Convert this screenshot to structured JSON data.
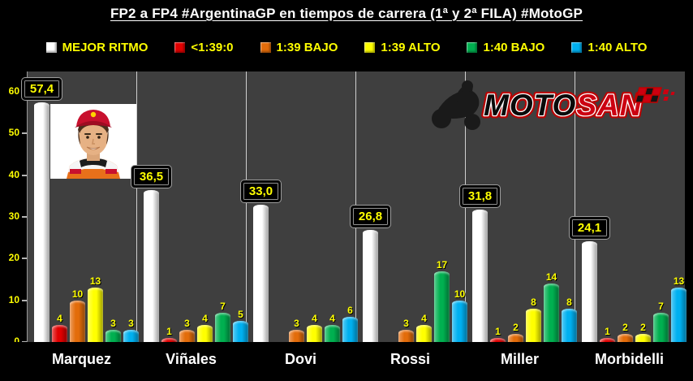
{
  "title": "FP2 a FP4 #ArgentinaGP en tiempos de carrera (1ª y 2ª FILA) #MotoGP",
  "colors": {
    "background": "#000000",
    "plot_background": "#3f3f3f",
    "separator": "#cfcfcf",
    "label_yellow": "#ffff00",
    "title_white": "#ffffff"
  },
  "legend": {
    "items": [
      {
        "label": "MEJOR RITMO",
        "color": "#ffffff"
      },
      {
        "label": "<1:39:0",
        "color": "#e00000"
      },
      {
        "label": "1:39 BAJO",
        "color": "#e36c0a"
      },
      {
        "label": "1:39 ALTO",
        "color": "#ffff00"
      },
      {
        "label": "1:40 BAJO",
        "color": "#00b050"
      },
      {
        "label": "1:40 ALTO",
        "color": "#00b0f0"
      }
    ]
  },
  "watermark": {
    "text": "MOTOSAN",
    "moto": "MOTO",
    "san": "SAN"
  },
  "chart_data": {
    "type": "bar",
    "title": "FP2 a FP4 #ArgentinaGP en tiempos de carrera (1ª y 2ª FILA) #MotoGP",
    "categories": [
      "Marquez",
      "Viñales",
      "Dovi",
      "Rossi",
      "Miller",
      "Morbidelli"
    ],
    "series": [
      {
        "name": "MEJOR RITMO",
        "color": "#ffffff",
        "values": [
          57.4,
          36.5,
          33.0,
          26.8,
          31.8,
          24.1
        ],
        "labels": [
          "57,4",
          "36,5",
          "33,0",
          "26,8",
          "31,8",
          "24,1"
        ],
        "label_style": "boxed"
      },
      {
        "name": "<1:39:0",
        "color": "#e00000",
        "values": [
          4,
          1,
          null,
          null,
          1,
          1
        ]
      },
      {
        "name": "1:39 BAJO",
        "color": "#e36c0a",
        "values": [
          10,
          3,
          3,
          3,
          2,
          2
        ]
      },
      {
        "name": "1:39 ALTO",
        "color": "#ffff00",
        "values": [
          13,
          4,
          4,
          4,
          8,
          2
        ]
      },
      {
        "name": "1:40 BAJO",
        "color": "#00b050",
        "values": [
          3,
          7,
          4,
          17,
          14,
          7
        ]
      },
      {
        "name": "1:40 ALTO",
        "color": "#00b0f0",
        "values": [
          3,
          5,
          6,
          10,
          8,
          13
        ]
      }
    ],
    "ylim": [
      0,
      60
    ],
    "yticks": [
      0,
      10,
      20,
      30,
      40,
      50,
      60
    ],
    "legend_position": "top",
    "grid": "vertical category separators only",
    "value_label_format": "comma-decimal for MEJOR RITMO series, integers for count series"
  }
}
